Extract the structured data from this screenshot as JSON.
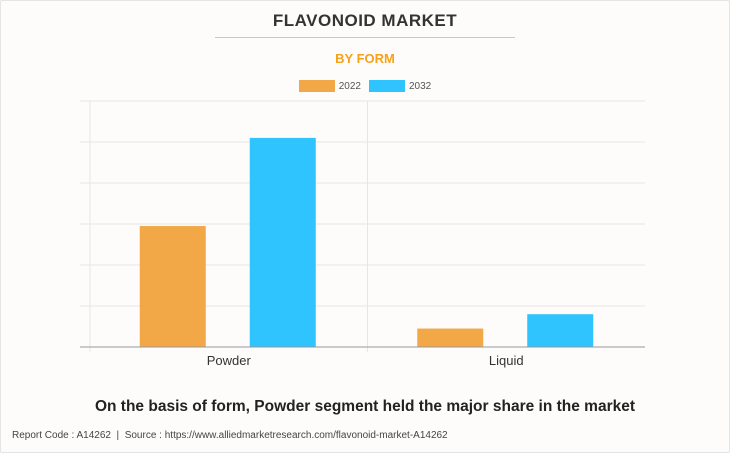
{
  "title": "FLAVONOID MARKET",
  "subtitle": "BY FORM",
  "caption": "On the basis of form, Powder segment held the major share in the market",
  "footer": {
    "report_code": "Report Code : A14262",
    "separator": "|",
    "source": "Source : https://www.alliedmarketresearch.com/flavonoid-market-A14262"
  },
  "colors": {
    "subtitle": "#f7a11a",
    "series_2022": "#f2a846",
    "series_2032": "#2fc4fd",
    "grid": "#e6e6e6",
    "axis": "#999999"
  },
  "chart_data": {
    "type": "bar",
    "categories": [
      "Powder",
      "Liquid"
    ],
    "series": [
      {
        "name": "2022",
        "values": [
          29.5,
          4.5
        ]
      },
      {
        "name": "2032",
        "values": [
          51,
          8
        ]
      }
    ],
    "ylim": [
      0,
      60
    ],
    "grid": true,
    "legend": "top-center",
    "xlabel": "",
    "ylabel": ""
  }
}
